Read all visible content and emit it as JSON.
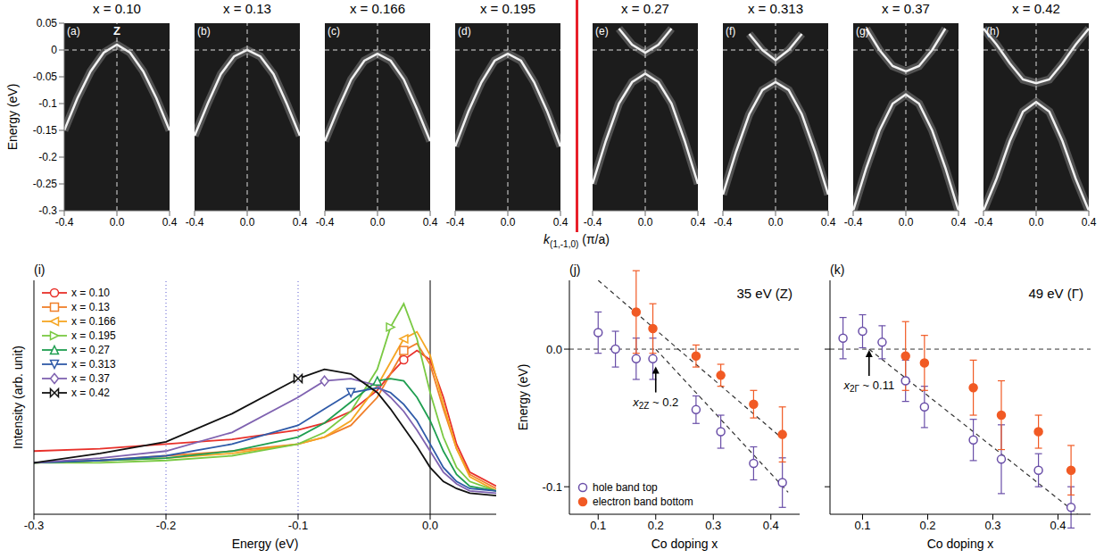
{
  "chart_data": [
    {
      "type": "line",
      "title": "x = 0.10",
      "panel": "(a)",
      "annotation": "Z",
      "y_label": "Energy (eV)",
      "x_label": {
        "symbol": "k",
        "subscript": "(1,-1,0)",
        "unit": "(π/a)"
      },
      "xlim": [
        -0.4,
        0.4
      ],
      "xticks": [
        -0.4,
        {
          "value": 0,
          "label": "0.0"
        },
        0.4
      ],
      "ylim": [
        -0.3,
        0.05
      ],
      "yticks": [
        -0.3,
        -0.25,
        -0.2,
        -0.15,
        -0.1,
        -0.05,
        0,
        0.05
      ],
      "hlines": [
        {
          "value": 0,
          "line_style": "dashed"
        }
      ],
      "vlines": [
        {
          "value": 0,
          "line_style": "dashed"
        }
      ],
      "x": [
        -0.4,
        -0.3,
        -0.2,
        -0.1,
        0,
        0.1,
        0.2,
        0.3,
        0.4
      ],
      "series": [
        {
          "color": "#f2f2f2",
          "values": [
            -0.15,
            -0.09,
            -0.04,
            -0.005,
            0.01,
            -0.005,
            -0.04,
            -0.09,
            -0.15
          ]
        }
      ]
    },
    {
      "type": "line",
      "title": "x = 0.13",
      "panel": "(b)",
      "tick_labels": "x",
      "xlim": [
        -0.4,
        0.4
      ],
      "xticks": [
        -0.4,
        {
          "value": 0,
          "label": "0.0"
        },
        0.4
      ],
      "ylim": [
        -0.3,
        0.05
      ],
      "yticks": [
        -0.3,
        -0.25,
        -0.2,
        -0.15,
        -0.1,
        -0.05,
        0,
        0.05
      ],
      "hlines": [
        {
          "value": 0,
          "line_style": "dashed"
        }
      ],
      "vlines": [
        {
          "value": 0,
          "line_style": "dashed"
        }
      ],
      "x": [
        -0.4,
        -0.3,
        -0.2,
        -0.1,
        0,
        0.1,
        0.2,
        0.3,
        0.4
      ],
      "series": [
        {
          "color": "#f2f2f2",
          "values": [
            -0.16,
            -0.1,
            -0.045,
            -0.012,
            0,
            -0.012,
            -0.045,
            -0.1,
            -0.16
          ]
        }
      ]
    },
    {
      "type": "line",
      "title": "x = 0.166",
      "panel": "(c)",
      "tick_labels": "x",
      "xlim": [
        -0.4,
        0.4
      ],
      "xticks": [
        -0.4,
        {
          "value": 0,
          "label": "0.0"
        },
        0.4
      ],
      "ylim": [
        -0.3,
        0.05
      ],
      "yticks": [
        -0.3,
        -0.25,
        -0.2,
        -0.15,
        -0.1,
        -0.05,
        0,
        0.05
      ],
      "hlines": [
        {
          "value": 0,
          "line_style": "dashed"
        }
      ],
      "vlines": [
        {
          "value": 0,
          "line_style": "dashed"
        }
      ],
      "x": [
        -0.4,
        -0.3,
        -0.2,
        -0.1,
        0,
        0.1,
        0.2,
        0.3,
        0.4
      ],
      "series": [
        {
          "color": "#f2f2f2",
          "values": [
            -0.17,
            -0.11,
            -0.055,
            -0.02,
            -0.007,
            -0.02,
            -0.055,
            -0.11,
            -0.17
          ]
        }
      ]
    },
    {
      "type": "line",
      "title": "x = 0.195",
      "panel": "(d)",
      "tick_labels": "x",
      "xlim": [
        -0.4,
        0.4
      ],
      "xticks": [
        -0.4,
        {
          "value": 0,
          "label": "0.0"
        },
        0.4
      ],
      "ylim": [
        -0.3,
        0.05
      ],
      "yticks": [
        -0.3,
        -0.25,
        -0.2,
        -0.15,
        -0.1,
        -0.05,
        0,
        0.05
      ],
      "hlines": [
        {
          "value": 0,
          "line_style": "dashed"
        }
      ],
      "vlines": [
        {
          "value": 0,
          "line_style": "dashed"
        }
      ],
      "x": [
        -0.4,
        -0.3,
        -0.2,
        -0.1,
        0,
        0.1,
        0.2,
        0.3,
        0.4
      ],
      "series": [
        {
          "color": "#f2f2f2",
          "values": [
            -0.18,
            -0.115,
            -0.06,
            -0.02,
            -0.007,
            -0.02,
            -0.06,
            -0.115,
            -0.18
          ]
        }
      ]
    },
    {
      "type": "line",
      "title": "x = 0.27",
      "panel": "(e)",
      "tick_labels": "x",
      "xlim": [
        -0.4,
        0.4
      ],
      "xticks": [
        -0.4,
        {
          "value": 0,
          "label": "0.0"
        },
        0.4
      ],
      "ylim": [
        -0.3,
        0.05
      ],
      "yticks": [
        -0.3,
        -0.25,
        -0.2,
        -0.15,
        -0.1,
        -0.05,
        0,
        0.05
      ],
      "hlines": [
        {
          "value": 0,
          "line_style": "dashed"
        }
      ],
      "vlines": [
        {
          "value": 0,
          "line_style": "dashed"
        }
      ],
      "x": [
        -0.4,
        -0.3,
        -0.2,
        -0.1,
        0,
        0.1,
        0.2,
        0.3,
        0.4
      ],
      "series": [
        {
          "color": "#f2f2f2",
          "values": [
            -0.25,
            -0.17,
            -0.1,
            -0.06,
            -0.044,
            -0.06,
            -0.1,
            -0.17,
            -0.25
          ]
        },
        {
          "color": "#f2f2f2",
          "values": [
            null,
            null,
            0.04,
            0.01,
            -0.005,
            0.01,
            0.04,
            null,
            null
          ]
        }
      ]
    },
    {
      "type": "line",
      "title": "x = 0.313",
      "panel": "(f)",
      "tick_labels": "x",
      "xlim": [
        -0.4,
        0.4
      ],
      "xticks": [
        -0.4,
        {
          "value": 0,
          "label": "0.0"
        },
        0.4
      ],
      "ylim": [
        -0.3,
        0.05
      ],
      "yticks": [
        -0.3,
        -0.25,
        -0.2,
        -0.15,
        -0.1,
        -0.05,
        0,
        0.05
      ],
      "hlines": [
        {
          "value": 0,
          "line_style": "dashed"
        }
      ],
      "vlines": [
        {
          "value": 0,
          "line_style": "dashed"
        }
      ],
      "x": [
        -0.4,
        -0.3,
        -0.2,
        -0.1,
        0,
        0.1,
        0.2,
        0.3,
        0.4
      ],
      "series": [
        {
          "color": "#f2f2f2",
          "values": [
            -0.27,
            -0.19,
            -0.12,
            -0.075,
            -0.06,
            -0.075,
            -0.12,
            -0.19,
            -0.27
          ]
        },
        {
          "color": "#f2f2f2",
          "values": [
            null,
            null,
            0.03,
            0,
            -0.019,
            0,
            0.03,
            null,
            null
          ]
        }
      ]
    },
    {
      "type": "line",
      "title": "x = 0.37",
      "panel": "(g)",
      "tick_labels": "x",
      "xlim": [
        -0.4,
        0.4
      ],
      "xticks": [
        -0.4,
        {
          "value": 0,
          "label": "0.0"
        },
        0.4
      ],
      "ylim": [
        -0.3,
        0.05
      ],
      "yticks": [
        -0.3,
        -0.25,
        -0.2,
        -0.15,
        -0.1,
        -0.05,
        0,
        0.05
      ],
      "hlines": [
        {
          "value": 0,
          "line_style": "dashed"
        }
      ],
      "vlines": [
        {
          "value": 0,
          "line_style": "dashed"
        }
      ],
      "x": [
        -0.4,
        -0.3,
        -0.2,
        -0.1,
        0,
        0.1,
        0.2,
        0.3,
        0.4
      ],
      "series": [
        {
          "color": "#f2f2f2",
          "values": [
            -0.3,
            -0.22,
            -0.15,
            -0.1,
            -0.083,
            -0.1,
            -0.15,
            -0.22,
            -0.3
          ]
        },
        {
          "color": "#f2f2f2",
          "values": [
            null,
            0.04,
            0,
            -0.03,
            -0.04,
            -0.03,
            0,
            0.04,
            null
          ]
        }
      ]
    },
    {
      "type": "line",
      "title": "x = 0.42",
      "panel": "(h)",
      "tick_labels": "x",
      "xlim": [
        -0.4,
        0.4
      ],
      "xticks": [
        -0.4,
        {
          "value": 0,
          "label": "0.0"
        },
        0.4
      ],
      "ylim": [
        -0.3,
        0.05
      ],
      "yticks": [
        -0.3,
        -0.25,
        -0.2,
        -0.15,
        -0.1,
        -0.05,
        0,
        0.05
      ],
      "hlines": [
        {
          "value": 0,
          "line_style": "dashed"
        }
      ],
      "vlines": [
        {
          "value": 0,
          "line_style": "dashed"
        }
      ],
      "x": [
        -0.4,
        -0.3,
        -0.2,
        -0.1,
        0,
        0.1,
        0.2,
        0.3,
        0.4
      ],
      "series": [
        {
          "color": "#f2f2f2",
          "values": [
            -0.3,
            -0.24,
            -0.17,
            -0.115,
            -0.097,
            -0.115,
            -0.17,
            -0.24,
            -0.3
          ]
        },
        {
          "color": "#f2f2f2",
          "values": [
            0.04,
            0.01,
            -0.025,
            -0.055,
            -0.062,
            -0.055,
            -0.025,
            0.01,
            0.04
          ]
        }
      ]
    },
    {
      "type": "line",
      "panel": "(i)",
      "x_label": "Energy (eV)",
      "y_label": "Intensity (arb. unit)",
      "tick_labels": "x",
      "legend": "upper left",
      "xlim": [
        -0.3,
        0.05
      ],
      "xticks": [
        -0.3,
        -0.2,
        -0.1,
        {
          "value": 0,
          "label": "0.0"
        }
      ],
      "ylim": [
        0,
        1
      ],
      "vlines": [
        {
          "value": 0,
          "line_style": "solid"
        },
        {
          "value": -0.1,
          "line_style": "dotted"
        },
        {
          "value": -0.2,
          "line_style": "dotted"
        }
      ],
      "x": [
        -0.3,
        -0.25,
        -0.2,
        -0.15,
        -0.1,
        -0.08,
        -0.06,
        -0.04,
        -0.03,
        -0.02,
        -0.01,
        0,
        0.01,
        0.02,
        0.03,
        0.05
      ],
      "series": [
        {
          "name": "x = 0.10",
          "color": "#e8302a",
          "marker": "circle",
          "values": [
            0.27,
            0.28,
            0.3,
            0.32,
            0.36,
            0.39,
            0.44,
            0.53,
            0.6,
            0.66,
            0.7,
            0.66,
            0.5,
            0.3,
            0.18,
            0.12
          ]
        },
        {
          "name": "x = 0.13",
          "color": "#f07f2a",
          "marker": "square",
          "values": [
            0.22,
            0.23,
            0.25,
            0.27,
            0.3,
            0.33,
            0.38,
            0.5,
            0.6,
            0.7,
            0.73,
            0.64,
            0.45,
            0.28,
            0.17,
            0.11
          ]
        },
        {
          "name": "x = 0.166",
          "color": "#f5a623",
          "marker": "triangle-left",
          "values": [
            0.22,
            0.23,
            0.24,
            0.26,
            0.3,
            0.33,
            0.4,
            0.55,
            0.65,
            0.75,
            0.78,
            0.68,
            0.47,
            0.28,
            0.16,
            0.1
          ]
        },
        {
          "name": "x = 0.195",
          "color": "#7ac943",
          "marker": "triangle-right",
          "values": [
            0.22,
            0.22,
            0.23,
            0.25,
            0.3,
            0.35,
            0.44,
            0.62,
            0.8,
            0.9,
            0.75,
            0.52,
            0.33,
            0.2,
            0.14,
            0.1
          ]
        },
        {
          "name": "x = 0.27",
          "color": "#1f9e50",
          "marker": "triangle-up",
          "values": [
            0.22,
            0.23,
            0.24,
            0.27,
            0.33,
            0.39,
            0.48,
            0.57,
            0.58,
            0.57,
            0.5,
            0.4,
            0.27,
            0.17,
            0.12,
            0.1
          ]
        },
        {
          "name": "x = 0.313",
          "color": "#2f5aa8",
          "marker": "triangle-down",
          "values": [
            0.22,
            0.23,
            0.25,
            0.3,
            0.38,
            0.45,
            0.52,
            0.54,
            0.52,
            0.47,
            0.4,
            0.3,
            0.2,
            0.14,
            0.11,
            0.1
          ]
        },
        {
          "name": "x = 0.37",
          "color": "#7f62b0",
          "marker": "diamond",
          "values": [
            0.22,
            0.24,
            0.27,
            0.35,
            0.5,
            0.57,
            0.58,
            0.55,
            0.5,
            0.44,
            0.36,
            0.27,
            0.18,
            0.13,
            0.1,
            0.09
          ]
        },
        {
          "name": "x = 0.42",
          "color": "#111111",
          "marker": "bowtie",
          "values": [
            0.22,
            0.26,
            0.31,
            0.43,
            0.58,
            0.62,
            0.6,
            0.52,
            0.45,
            0.37,
            0.29,
            0.2,
            0.14,
            0.11,
            0.09,
            0.08
          ]
        }
      ]
    },
    {
      "type": "scatter",
      "panel": "(j)",
      "title": "35 eV (Z)",
      "x_label": "Co doping x",
      "y_label": "Energy (eV)",
      "legend": "lower left",
      "xlim": [
        0.05,
        0.45
      ],
      "xticks": [
        0.1,
        0.2,
        0.3,
        0.4
      ],
      "ylim": [
        -0.12,
        0.05
      ],
      "yticks": [
        -0.1,
        {
          "value": 0,
          "label": "0.0"
        }
      ],
      "hlines": [
        {
          "value": 0,
          "line_style": "dashed"
        }
      ],
      "annotation": {
        "symbol": "x",
        "subscript": "2Z",
        "text": " ~ 0.2",
        "x": 0.2,
        "y": -0.012
      },
      "series": [
        {
          "name": "hole band top",
          "color": "#6a4fa8",
          "marker": "open_circle",
          "x": [
            0.1,
            0.13,
            0.166,
            0.195,
            0.27,
            0.313,
            0.37,
            0.42
          ],
          "values": [
            0.012,
            0,
            -0.007,
            -0.007,
            -0.044,
            -0.06,
            -0.083,
            -0.097
          ],
          "errors": [
            0.015,
            0.013,
            0.015,
            0.015,
            0.01,
            0.012,
            0.012,
            0.018
          ]
        },
        {
          "name": "electron band bottom",
          "color": "#f15a24",
          "marker": "filled_circle",
          "x": [
            0.166,
            0.195,
            0.27,
            0.313,
            0.37,
            0.42
          ],
          "values": [
            0.027,
            0.015,
            -0.005,
            -0.019,
            -0.04,
            -0.062
          ],
          "errors": [
            0.03,
            0.018,
            0.008,
            0.008,
            0.01,
            0.02
          ]
        },
        {
          "type": "line",
          "line_style": "dashed",
          "color": "#333333",
          "x": [
            0.1,
            0.42
          ],
          "values": [
            0.05,
            -0.065
          ]
        },
        {
          "type": "line",
          "line_style": "dashed",
          "color": "#333333",
          "x": [
            0.2,
            0.43
          ],
          "values": [
            0,
            -0.104
          ]
        }
      ]
    },
    {
      "type": "scatter",
      "panel": "(k)",
      "title": "49 eV (Γ)",
      "x_label": "Co doping x",
      "tick_labels": "x",
      "xlim": [
        0.05,
        0.45
      ],
      "xticks": [
        0.1,
        0.2,
        0.3,
        0.4
      ],
      "ylim": [
        -0.12,
        0.05
      ],
      "yticks": [
        -0.1,
        0
      ],
      "hlines": [
        {
          "value": 0,
          "line_style": "dashed"
        }
      ],
      "annotation": {
        "symbol": "x",
        "subscript": "2Γ",
        "text": " ~ 0.11",
        "x": 0.11,
        "y": 0
      },
      "series": [
        {
          "color": "#6a4fa8",
          "marker": "open_circle",
          "x": [
            0.07,
            0.1,
            0.13,
            0.166,
            0.195,
            0.27,
            0.313,
            0.37,
            0.42
          ],
          "values": [
            0.008,
            0.013,
            0.005,
            -0.023,
            -0.042,
            -0.066,
            -0.08,
            -0.088,
            -0.115
          ],
          "errors": [
            0.015,
            0.012,
            0.012,
            0.015,
            0.015,
            0.015,
            0.025,
            0.012,
            0.015
          ]
        },
        {
          "color": "#f15a24",
          "marker": "filled_circle",
          "x": [
            0.166,
            0.195,
            0.27,
            0.313,
            0.37,
            0.42
          ],
          "values": [
            -0.005,
            -0.01,
            -0.028,
            -0.048,
            -0.06,
            -0.088
          ],
          "errors": [
            0.025,
            0.02,
            0.02,
            0.025,
            0.012,
            0.018
          ]
        },
        {
          "type": "line",
          "line_style": "dashed",
          "color": "#333333",
          "x": [
            0.11,
            0.43
          ],
          "values": [
            0,
            -0.12
          ]
        }
      ]
    }
  ]
}
